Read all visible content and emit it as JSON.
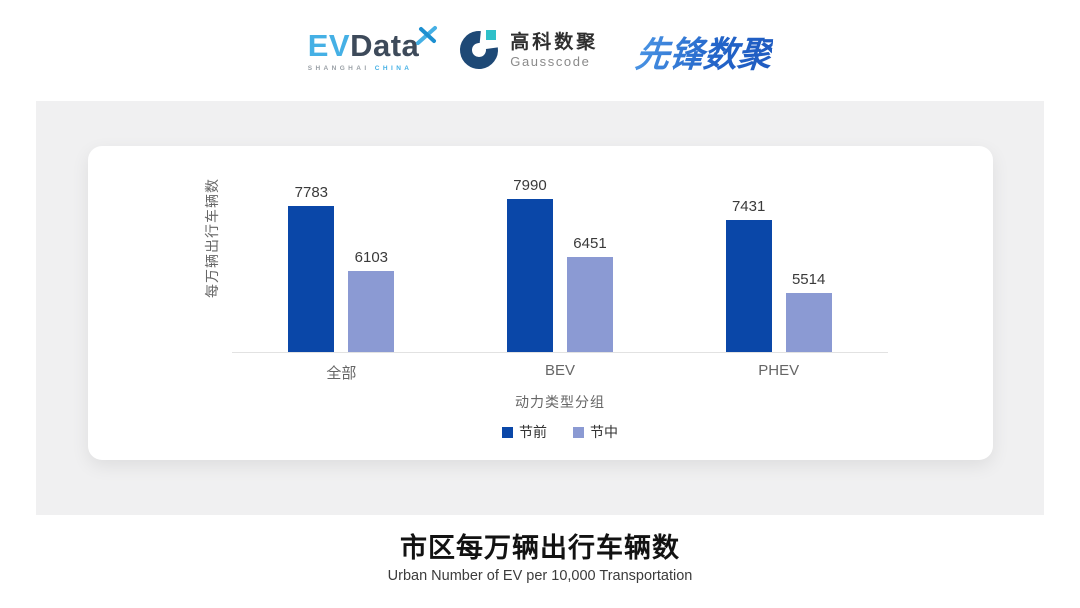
{
  "header": {
    "evdata": {
      "ev": "EV",
      "data": "Data",
      "shanghai": "SHANGHAI",
      "china": "CHINA"
    },
    "gausscode": {
      "cn": "高科数聚",
      "en": "Gausscode"
    },
    "xianfeng": {
      "text": "先锋数聚"
    }
  },
  "chart_data": {
    "type": "bar",
    "categories": [
      "全部",
      "BEV",
      "PHEV"
    ],
    "series": [
      {
        "name": "节前",
        "color": "#0A47A8",
        "values": [
          7783,
          7990,
          7431
        ]
      },
      {
        "name": "节中",
        "color": "#8B9AD3",
        "values": [
          6103,
          6451,
          5514
        ]
      }
    ],
    "xlabel": "动力类型分组",
    "ylabel": "每万辆出行车辆数",
    "ylim": [
      3980,
      8500
    ],
    "grid": false,
    "legend_position": "bottom",
    "value_labels": true,
    "title": "市区每万辆出行车辆数",
    "subtitle": "Urban Number of EV per 10,000 Transportation"
  },
  "colors": {
    "series_pre": "#0A47A8",
    "series_mid": "#8B9AD3",
    "panel_bg": "#F0F0F1",
    "card_bg": "#FFFFFF",
    "axis_line": "#E2E2E2",
    "evdata_blue": "#45B0E5",
    "evdata_dark": "#3D4A5A",
    "gausscode_navy": "#1E4976",
    "gausscode_teal": "#2FC0C9",
    "xianfeng_blue": "#2E76D6"
  }
}
